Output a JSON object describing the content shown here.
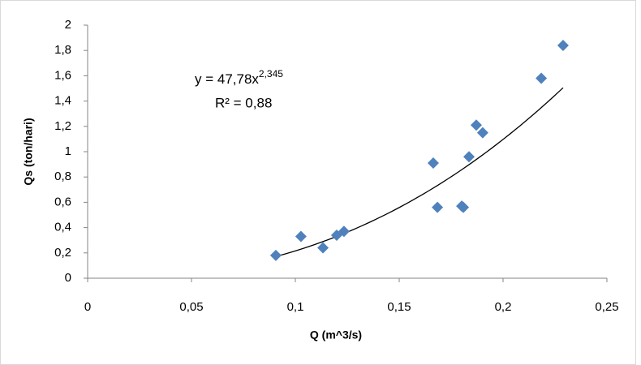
{
  "chart_data": {
    "type": "scatter",
    "x_label": "Q (m^3/s)",
    "y_label": "Qs (ton/hari)",
    "series": [
      {
        "color": "#4f81bd",
        "x": [
          0.0906,
          0.1027,
          0.1133,
          0.1199,
          0.1234,
          0.1664,
          0.1684,
          0.1801,
          0.1809,
          0.1836,
          0.1871,
          0.1902,
          0.2184,
          0.2289
        ],
        "values": [
          0.18,
          0.33,
          0.24,
          0.34,
          0.37,
          0.91,
          0.56,
          0.57,
          0.56,
          0.96,
          1.21,
          1.15,
          1.58,
          1.84
        ]
      }
    ],
    "trendline": {
      "equation": "y = 47,78x",
      "exponent_label": "2,345",
      "r2_label": "R² = 0,88",
      "coefficient": 47.78,
      "exponent": 2.345,
      "color": "#000000"
    },
    "xlim": [
      0,
      0.25
    ],
    "xticks": [
      0,
      {
        "value": 0.05,
        "label": "0,05"
      },
      {
        "value": 0.1,
        "label": "0,1"
      },
      {
        "value": 0.15,
        "label": "0,15"
      },
      {
        "value": 0.2,
        "label": "0,2"
      },
      {
        "value": 0.25,
        "label": "0,25"
      }
    ],
    "ylim": [
      0,
      2
    ],
    "yticks": [
      0,
      {
        "value": 0.2,
        "label": "0,2"
      },
      {
        "value": 0.4,
        "label": "0,4"
      },
      {
        "value": 0.6,
        "label": "0,6"
      },
      {
        "value": 0.8,
        "label": "0,8"
      },
      1,
      {
        "value": 1.2,
        "label": "1,2"
      },
      {
        "value": 1.4,
        "label": "1,4"
      },
      {
        "value": 1.6,
        "label": "1,6"
      },
      {
        "value": 1.8,
        "label": "1,8"
      },
      2
    ],
    "grid": false
  }
}
